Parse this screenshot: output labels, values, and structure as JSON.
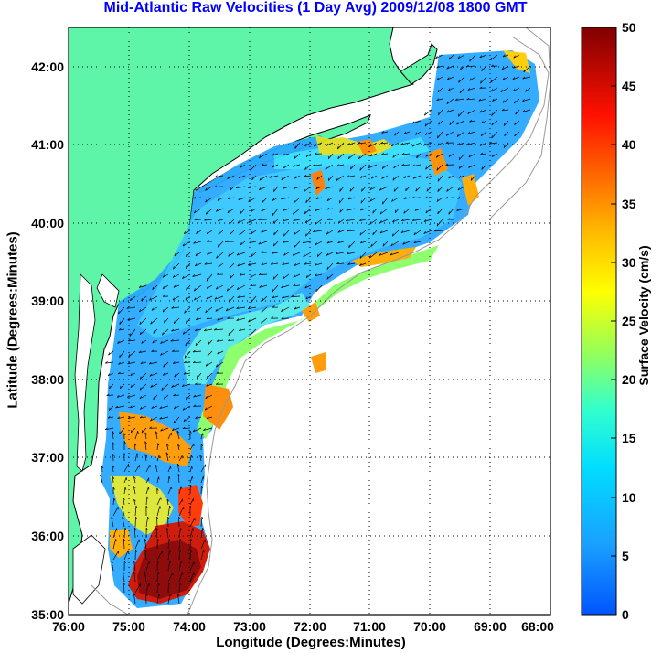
{
  "title": "Mid-Atlantic Raw Velocities (1 Day Avg) 2009/12/08 1800 GMT",
  "axes": {
    "xlabel": "Longitude (Degrees:Minutes)",
    "ylabel": "Latitude (Degrees:Minutes)",
    "x_ticks": [
      "76:00",
      "75:00",
      "74:00",
      "73:00",
      "72:00",
      "71:00",
      "70:00",
      "69:00",
      "68:00"
    ],
    "y_ticks": [
      "42:00",
      "41:00",
      "40:00",
      "39:00",
      "38:00",
      "37:00",
      "36:00",
      "35:00"
    ],
    "xlim": [
      -76,
      -68
    ],
    "ylim": [
      35,
      42.5
    ],
    "grid": "dotted"
  },
  "colorbar": {
    "label": "Surface Velocity (cm/s)",
    "ticks": [
      "0",
      "5",
      "10",
      "15",
      "20",
      "25",
      "30",
      "35",
      "40",
      "45",
      "50"
    ],
    "range": [
      0,
      50
    ],
    "colormap": "jet"
  },
  "colors": {
    "land": "#5ff5a8",
    "title": "#0000ff",
    "coastline": "#000000",
    "bathymetry": "#999999"
  }
}
